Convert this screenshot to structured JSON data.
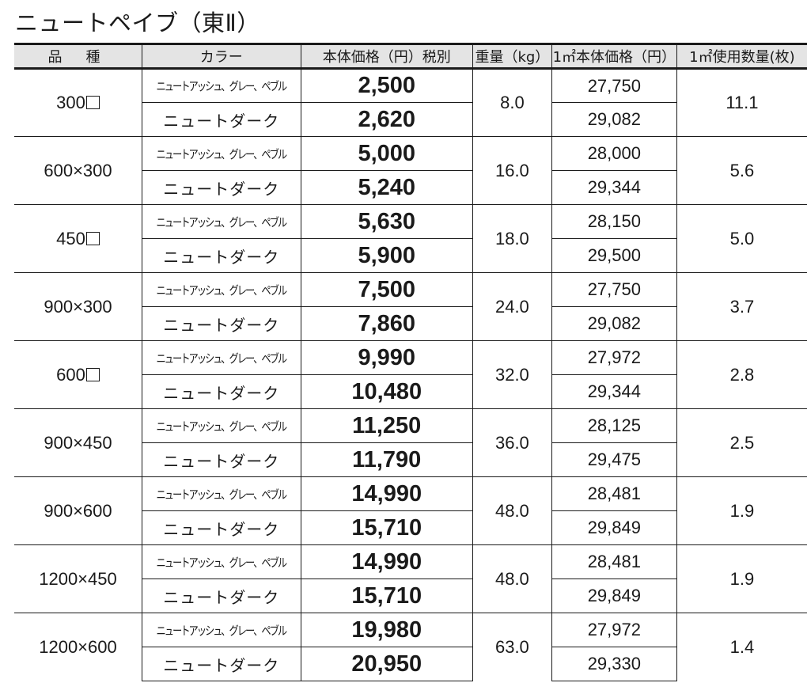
{
  "title": "ニュートペイブ（東Ⅱ）",
  "table": {
    "headers": [
      "品種",
      "カラー",
      "本体価格（円）税別",
      "重量（kg）",
      "1㎡本体価格（円）",
      "1㎡使用数量(枚)"
    ],
    "groups": [
      {
        "kind": "300□",
        "weight": "8.0",
        "qty": "11.1",
        "rows": [
          {
            "color": "ニュートアッシュ、グレー、ペブル",
            "price": "2,500",
            "m2price": "27,750"
          },
          {
            "color": "ニュートダーク",
            "price": "2,620",
            "m2price": "29,082"
          }
        ]
      },
      {
        "kind": "600×300",
        "weight": "16.0",
        "qty": "5.6",
        "rows": [
          {
            "color": "ニュートアッシュ、グレー、ペブル",
            "price": "5,000",
            "m2price": "28,000"
          },
          {
            "color": "ニュートダーク",
            "price": "5,240",
            "m2price": "29,344"
          }
        ]
      },
      {
        "kind": "450□",
        "weight": "18.0",
        "qty": "5.0",
        "rows": [
          {
            "color": "ニュートアッシュ、グレー、ペブル",
            "price": "5,630",
            "m2price": "28,150"
          },
          {
            "color": "ニュートダーク",
            "price": "5,900",
            "m2price": "29,500"
          }
        ]
      },
      {
        "kind": "900×300",
        "weight": "24.0",
        "qty": "3.7",
        "rows": [
          {
            "color": "ニュートアッシュ、グレー、ペブル",
            "price": "7,500",
            "m2price": "27,750"
          },
          {
            "color": "ニュートダーク",
            "price": "7,860",
            "m2price": "29,082"
          }
        ]
      },
      {
        "kind": "600□",
        "weight": "32.0",
        "qty": "2.8",
        "rows": [
          {
            "color": "ニュートアッシュ、グレー、ペブル",
            "price": "9,990",
            "m2price": "27,972"
          },
          {
            "color": "ニュートダーク",
            "price": "10,480",
            "m2price": "29,344"
          }
        ]
      },
      {
        "kind": "900×450",
        "weight": "36.0",
        "qty": "2.5",
        "rows": [
          {
            "color": "ニュートアッシュ、グレー、ペブル",
            "price": "11,250",
            "m2price": "28,125"
          },
          {
            "color": "ニュートダーク",
            "price": "11,790",
            "m2price": "29,475"
          }
        ]
      },
      {
        "kind": "900×600",
        "weight": "48.0",
        "qty": "1.9",
        "rows": [
          {
            "color": "ニュートアッシュ、グレー、ペブル",
            "price": "14,990",
            "m2price": "28,481"
          },
          {
            "color": "ニュートダーク",
            "price": "15,710",
            "m2price": "29,849"
          }
        ]
      },
      {
        "kind": "1200×450",
        "weight": "48.0",
        "qty": "1.9",
        "rows": [
          {
            "color": "ニュートアッシュ、グレー、ペブル",
            "price": "14,990",
            "m2price": "28,481"
          },
          {
            "color": "ニュートダーク",
            "price": "15,710",
            "m2price": "29,849"
          }
        ]
      },
      {
        "kind": "1200×600",
        "weight": "63.0",
        "qty": "1.4",
        "rows": [
          {
            "color": "ニュートアッシュ、グレー、ペブル",
            "price": "19,980",
            "m2price": "27,972"
          },
          {
            "color": "ニュートダーク",
            "price": "20,950",
            "m2price": "29,330"
          }
        ]
      }
    ]
  },
  "colors": {
    "header_bg": "#e4e4e4",
    "line": "#1a1a1a",
    "text": "#1a1a1a"
  }
}
